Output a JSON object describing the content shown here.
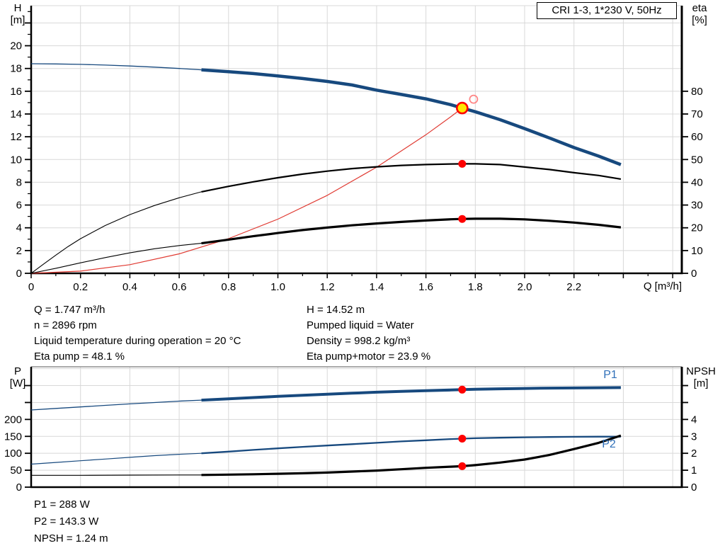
{
  "axis_labels": {
    "h": [
      "H",
      "[m]"
    ],
    "eta": [
      "eta",
      "[%]"
    ],
    "p": [
      "P",
      "[W]"
    ],
    "npsh": [
      "NPSH",
      "[m]"
    ]
  },
  "curve_labels": {
    "p1": "P1",
    "p2": "P2"
  },
  "top_info": {
    "left": [
      "Q = 1.747 m³/h",
      "n = 2896 rpm",
      "Liquid temperature during operation = 20 °C",
      "Eta pump = 48.1 %"
    ],
    "right": [
      "H = 14.52 m",
      "Pumped liquid = Water",
      "Density = 998.2 kg/m³",
      "Eta pump+motor = 23.9 %"
    ]
  },
  "bottom_info": [
    "P1 = 288 W",
    "P2 = 143.3 W",
    "NPSH = 1.24 m"
  ],
  "colors": {
    "curve_blue": "#17497e",
    "label_blue": "#2f6fb8",
    "system_red": "#e03a32",
    "marker_red": "#fe0000",
    "duty_yellow": "#ffe600",
    "grid": "#d8d8d8"
  },
  "chart_data": [
    {
      "type": "line",
      "title": "CRI 1-3, 1*230 V, 50Hz",
      "x_axis": {
        "title": "Q [m³/h]",
        "min": 0,
        "max": 2.637,
        "major": [
          0,
          0.2,
          0.4,
          0.6,
          0.8,
          1.0,
          1.2,
          1.4,
          1.6,
          1.8,
          2.0,
          2.2,
          2.4,
          2.6
        ],
        "labels": [
          "0",
          "0.2",
          "0.4",
          "0.6",
          "0.8",
          "1.0",
          "1.2",
          "1.4",
          "1.6",
          "1.8",
          "2.0",
          "2.2"
        ],
        "minor": [
          0.1,
          0.3,
          0.5,
          0.7,
          0.9,
          1.1,
          1.3,
          1.5,
          1.7,
          1.9,
          2.1,
          2.3,
          2.5
        ],
        "grid": [
          0.2,
          0.4,
          0.6,
          0.8,
          1.0,
          1.2,
          1.4,
          1.6,
          1.8,
          2.0,
          2.2,
          2.4,
          2.6
        ]
      },
      "y_left": {
        "label": "H [m]",
        "min": 0,
        "max": 23.52,
        "major": [
          0,
          2,
          4,
          6,
          8,
          10,
          12,
          14,
          16,
          18,
          20,
          22
        ],
        "labels": [
          "0",
          "2",
          "4",
          "6",
          "8",
          "10",
          "12",
          "14",
          "16",
          "18",
          "20"
        ],
        "minor": [
          1,
          3,
          5,
          7,
          9,
          11,
          13,
          15,
          17,
          19,
          21,
          23
        ],
        "grid": [
          2,
          4,
          6,
          8,
          10,
          12,
          14,
          16,
          18,
          20,
          22
        ]
      },
      "y_right": {
        "label": "eta [%]",
        "min": 0,
        "max": 117.6,
        "major": [
          0,
          10,
          20,
          30,
          40,
          50,
          60,
          70,
          80
        ],
        "labels": [
          "0",
          "10",
          "20",
          "30",
          "40",
          "50",
          "60",
          "70",
          "80"
        ],
        "minor": [],
        "grid": []
      },
      "series": [
        {
          "name": "system-curve",
          "axis": "left",
          "color": "#e03a32",
          "width": 1.2,
          "points": [
            [
              0,
              0
            ],
            [
              0.2,
              0.19
            ],
            [
              0.4,
              0.76
            ],
            [
              0.6,
              1.71
            ],
            [
              0.8,
              3.05
            ],
            [
              1.0,
              4.76
            ],
            [
              1.2,
              6.85
            ],
            [
              1.4,
              9.33
            ],
            [
              1.6,
              12.18
            ],
            [
              1.7,
              13.75
            ],
            [
              1.747,
              14.52
            ]
          ]
        },
        {
          "name": "qh-thin",
          "axis": "left",
          "color": "#17497e",
          "width": 1.3,
          "points": [
            [
              0,
              18.42
            ],
            [
              0.1,
              18.4
            ],
            [
              0.2,
              18.36
            ],
            [
              0.3,
              18.3
            ],
            [
              0.4,
              18.22
            ],
            [
              0.5,
              18.12
            ],
            [
              0.6,
              18.0
            ],
            [
              0.69,
              17.88
            ]
          ]
        },
        {
          "name": "qh",
          "axis": "left",
          "color": "#17497e",
          "width": 4.5,
          "points": [
            [
              0.69,
              17.88
            ],
            [
              0.8,
              17.72
            ],
            [
              0.9,
              17.55
            ],
            [
              1.0,
              17.35
            ],
            [
              1.1,
              17.12
            ],
            [
              1.2,
              16.86
            ],
            [
              1.3,
              16.55
            ],
            [
              1.4,
              16.1
            ],
            [
              1.5,
              15.72
            ],
            [
              1.6,
              15.33
            ],
            [
              1.7,
              14.82
            ],
            [
              1.747,
              14.52
            ],
            [
              1.8,
              14.2
            ],
            [
              1.9,
              13.5
            ],
            [
              2.0,
              12.72
            ],
            [
              2.1,
              11.9
            ],
            [
              2.2,
              11.05
            ],
            [
              2.3,
              10.3
            ],
            [
              2.39,
              9.55
            ]
          ]
        },
        {
          "name": "eta-pump-thin",
          "axis": "right",
          "color": "#000000",
          "width": 1.1,
          "points": [
            [
              0,
              0
            ],
            [
              0.05,
              4
            ],
            [
              0.1,
              8
            ],
            [
              0.15,
              11.8
            ],
            [
              0.2,
              15.2
            ],
            [
              0.3,
              21.0
            ],
            [
              0.4,
              25.8
            ],
            [
              0.5,
              29.8
            ],
            [
              0.6,
              33.2
            ],
            [
              0.69,
              35.8
            ]
          ]
        },
        {
          "name": "eta-pump",
          "axis": "right",
          "color": "#000000",
          "width": 2.2,
          "points": [
            [
              0.69,
              35.8
            ],
            [
              0.8,
              38.2
            ],
            [
              0.9,
              40.2
            ],
            [
              1.0,
              42.0
            ],
            [
              1.1,
              43.6
            ],
            [
              1.2,
              44.9
            ],
            [
              1.3,
              46.0
            ],
            [
              1.4,
              46.8
            ],
            [
              1.5,
              47.4
            ],
            [
              1.6,
              47.8
            ],
            [
              1.7,
              48.05
            ],
            [
              1.747,
              48.1
            ],
            [
              1.8,
              48.1
            ],
            [
              1.9,
              47.8
            ],
            [
              2.0,
              46.7
            ],
            [
              2.1,
              45.6
            ],
            [
              2.2,
              44.2
            ],
            [
              2.3,
              43.0
            ],
            [
              2.39,
              41.4
            ]
          ]
        },
        {
          "name": "eta-pump-motor-thin",
          "axis": "right",
          "color": "#000000",
          "width": 1.1,
          "points": [
            [
              0,
              0
            ],
            [
              0.1,
              2.2
            ],
            [
              0.2,
              4.6
            ],
            [
              0.3,
              6.9
            ],
            [
              0.4,
              9.0
            ],
            [
              0.5,
              10.8
            ],
            [
              0.6,
              12.2
            ],
            [
              0.69,
              13.2
            ]
          ]
        },
        {
          "name": "eta-pump-motor",
          "axis": "right",
          "color": "#000000",
          "width": 3.2,
          "points": [
            [
              0.69,
              13.2
            ],
            [
              0.8,
              14.8
            ],
            [
              0.9,
              16.3
            ],
            [
              1.0,
              17.7
            ],
            [
              1.1,
              19.0
            ],
            [
              1.2,
              20.1
            ],
            [
              1.3,
              21.1
            ],
            [
              1.4,
              21.9
            ],
            [
              1.5,
              22.6
            ],
            [
              1.6,
              23.2
            ],
            [
              1.7,
              23.75
            ],
            [
              1.747,
              23.9
            ],
            [
              1.8,
              24.0
            ],
            [
              1.9,
              24.0
            ],
            [
              2.0,
              23.7
            ],
            [
              2.1,
              23.1
            ],
            [
              2.2,
              22.3
            ],
            [
              2.3,
              21.3
            ],
            [
              2.39,
              20.2
            ]
          ]
        }
      ],
      "markers": [
        {
          "name": "duty-point",
          "axis": "left",
          "q": 1.747,
          "v": 14.52,
          "r": 7.5,
          "fill": "#ffe600",
          "stroke": "#fe0000",
          "sw": 2.6
        },
        {
          "name": "rated-point",
          "axis": "left",
          "q": 1.793,
          "v": 15.3,
          "r": 5.5,
          "fill": "none",
          "stroke": "#ff8585",
          "sw": 1.8
        },
        {
          "name": "eta-pump-point",
          "axis": "right",
          "q": 1.747,
          "v": 48.1,
          "r": 5.5,
          "fill": "#fe0000"
        },
        {
          "name": "eta-pump-motor-point",
          "axis": "right",
          "q": 1.747,
          "v": 23.9,
          "r": 5.5,
          "fill": "#fe0000"
        }
      ]
    },
    {
      "type": "line",
      "title": "",
      "x_axis": {
        "title": "",
        "min": 0,
        "max": 2.637,
        "major": [],
        "labels": [],
        "minor": [],
        "grid": [
          0.2,
          0.4,
          0.6,
          0.8,
          1.0,
          1.2,
          1.4,
          1.6,
          1.8,
          2.0,
          2.2,
          2.4,
          2.6
        ]
      },
      "y_left": {
        "label": "P [W]",
        "min": 0,
        "max": 355.5,
        "major": [
          0,
          50,
          100,
          150,
          200,
          250,
          300
        ],
        "labels": [
          "0",
          "50",
          "100",
          "150",
          "200"
        ],
        "minor": [],
        "grid": [
          50,
          100,
          150,
          200,
          250,
          300,
          350
        ]
      },
      "y_right": {
        "label": "NPSH [m]",
        "min": 0,
        "max": 7.11,
        "major": [
          0,
          1,
          2,
          3,
          4,
          5,
          6
        ],
        "labels": [
          "0",
          "1",
          "2",
          "3",
          "4"
        ],
        "minor": [],
        "grid": []
      },
      "series": [
        {
          "name": "p1-thin",
          "axis": "left",
          "color": "#17497e",
          "width": 1.3,
          "points": [
            [
              0,
              228
            ],
            [
              0.1,
              232.5
            ],
            [
              0.2,
              237
            ],
            [
              0.3,
              241.5
            ],
            [
              0.4,
              246
            ],
            [
              0.5,
              250
            ],
            [
              0.6,
              254
            ],
            [
              0.69,
              257
            ]
          ]
        },
        {
          "name": "p1",
          "axis": "left",
          "color": "#17497e",
          "width": 4,
          "points": [
            [
              0.69,
              257
            ],
            [
              0.8,
              261
            ],
            [
              0.9,
              264.5
            ],
            [
              1.0,
              268
            ],
            [
              1.1,
              271.5
            ],
            [
              1.2,
              274.5
            ],
            [
              1.3,
              277.5
            ],
            [
              1.4,
              280.5
            ],
            [
              1.5,
              283
            ],
            [
              1.6,
              285
            ],
            [
              1.7,
              287
            ],
            [
              1.747,
              288
            ],
            [
              1.8,
              289
            ],
            [
              1.9,
              290.5
            ],
            [
              2.0,
              291.5
            ],
            [
              2.1,
              292.5
            ],
            [
              2.2,
              293
            ],
            [
              2.3,
              293.5
            ],
            [
              2.39,
              294
            ]
          ]
        },
        {
          "name": "p2-thin",
          "axis": "left",
          "color": "#17497e",
          "width": 1.2,
          "points": [
            [
              0,
              68
            ],
            [
              0.1,
              73
            ],
            [
              0.2,
              78
            ],
            [
              0.3,
              83
            ],
            [
              0.4,
              88
            ],
            [
              0.5,
              93
            ],
            [
              0.6,
              97
            ],
            [
              0.69,
              100
            ]
          ]
        },
        {
          "name": "p2",
          "axis": "left",
          "color": "#17497e",
          "width": 2.3,
          "points": [
            [
              0.69,
              100
            ],
            [
              0.8,
              105
            ],
            [
              0.9,
              110
            ],
            [
              1.0,
              114.5
            ],
            [
              1.1,
              119
            ],
            [
              1.2,
              123
            ],
            [
              1.3,
              127
            ],
            [
              1.4,
              131
            ],
            [
              1.5,
              135
            ],
            [
              1.6,
              138.5
            ],
            [
              1.7,
              142
            ],
            [
              1.747,
              143.3
            ],
            [
              1.8,
              144.5
            ],
            [
              1.9,
              146
            ],
            [
              2.0,
              147.3
            ],
            [
              2.1,
              148
            ],
            [
              2.2,
              148.6
            ],
            [
              2.3,
              149
            ],
            [
              2.39,
              149.2
            ]
          ]
        },
        {
          "name": "npsh-thin",
          "axis": "right",
          "color": "#000000",
          "width": 1.2,
          "points": [
            [
              0,
              0.7
            ],
            [
              0.2,
              0.7
            ],
            [
              0.4,
              0.71
            ],
            [
              0.6,
              0.72
            ],
            [
              0.69,
              0.72
            ]
          ]
        },
        {
          "name": "npsh",
          "axis": "right",
          "color": "#000000",
          "width": 3.2,
          "points": [
            [
              0.69,
              0.72
            ],
            [
              0.8,
              0.74
            ],
            [
              0.9,
              0.76
            ],
            [
              1.0,
              0.79
            ],
            [
              1.1,
              0.82
            ],
            [
              1.2,
              0.86
            ],
            [
              1.3,
              0.92
            ],
            [
              1.4,
              0.98
            ],
            [
              1.5,
              1.06
            ],
            [
              1.6,
              1.14
            ],
            [
              1.7,
              1.21
            ],
            [
              1.747,
              1.24
            ],
            [
              1.8,
              1.3
            ],
            [
              1.9,
              1.45
            ],
            [
              2.0,
              1.63
            ],
            [
              2.1,
              1.9
            ],
            [
              2.2,
              2.25
            ],
            [
              2.3,
              2.62
            ],
            [
              2.39,
              3.05
            ]
          ]
        }
      ],
      "markers": [
        {
          "name": "p1-point",
          "axis": "left",
          "q": 1.747,
          "v": 288,
          "r": 5.5,
          "fill": "#fe0000"
        },
        {
          "name": "p2-point",
          "axis": "left",
          "q": 1.747,
          "v": 143.3,
          "r": 5.5,
          "fill": "#fe0000"
        },
        {
          "name": "npsh-point",
          "axis": "right",
          "q": 1.747,
          "v": 1.24,
          "r": 5.5,
          "fill": "#fe0000"
        }
      ]
    }
  ]
}
